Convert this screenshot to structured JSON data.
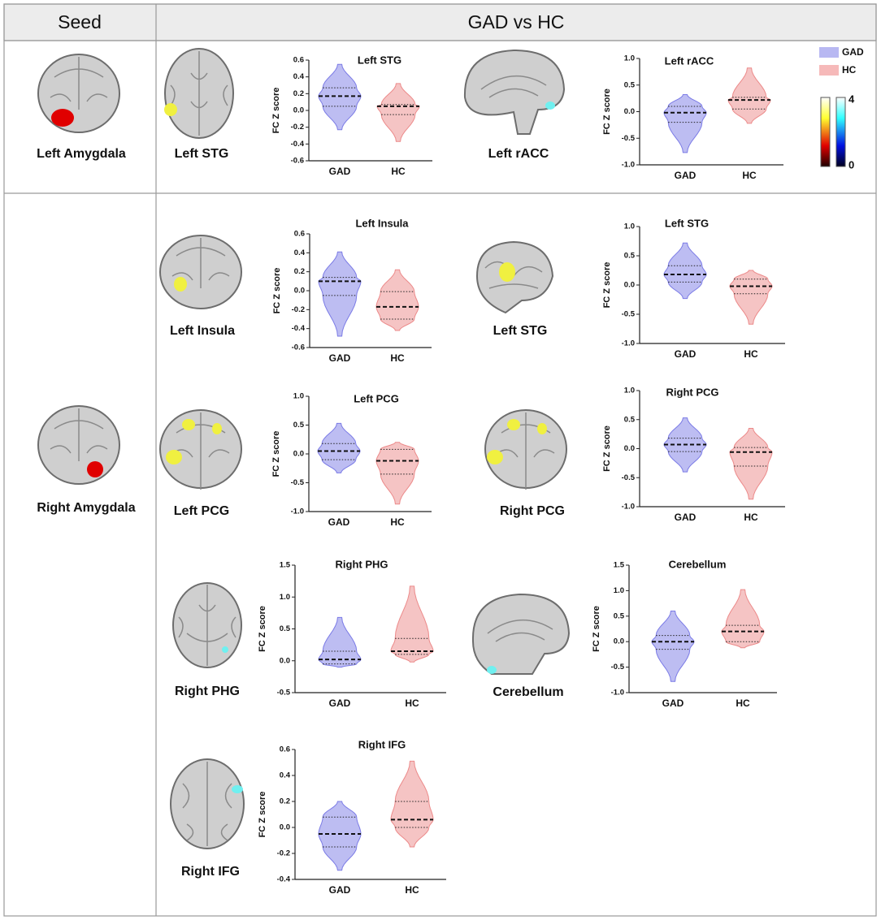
{
  "header": {
    "seed": "Seed",
    "comparison": "GAD vs HC"
  },
  "seeds": [
    "Left Amygdala",
    "Right Amygdala"
  ],
  "brain_labels": [
    "Left STG",
    "Left rACC",
    "Left Insula",
    "Left STG",
    "Left PCG",
    "Right PCG",
    "Right PHG",
    "Cerebellum",
    "Right IFG"
  ],
  "legend": [
    {
      "name": "GAD",
      "color": "#b8b8f2"
    },
    {
      "name": "HC",
      "color": "#f6b9b9"
    }
  ],
  "colorbar": {
    "max": 4,
    "min": 0
  },
  "chart_data": [
    {
      "type": "violin",
      "title": "Left STG",
      "y_label": "FC Z score",
      "categories": [
        "GAD",
        "HC"
      ],
      "colors": [
        "#7b7be6",
        "#ec8a8a"
      ],
      "min": [
        -0.23,
        -0.37
      ],
      "q1": [
        0.05,
        -0.05
      ],
      "median": [
        0.17,
        0.05
      ],
      "q3": [
        0.27,
        0.07
      ],
      "max": [
        0.55,
        0.32
      ],
      "ylim": [
        -0.6,
        0.6
      ],
      "yticks": [
        -0.6,
        -0.4,
        -0.2,
        {
          "value": 0,
          "label": "0.0"
        },
        0.2,
        0.4,
        0.6
      ]
    },
    {
      "type": "violin",
      "title": "Left rACC",
      "y_label": "FC Z score",
      "categories": [
        "GAD",
        "HC"
      ],
      "colors": [
        "#7b7be6",
        "#ec8a8a"
      ],
      "min": [
        -0.77,
        -0.22
      ],
      "q1": [
        -0.2,
        0.05
      ],
      "median": [
        -0.02,
        0.22
      ],
      "q3": [
        0.1,
        0.27
      ],
      "max": [
        0.32,
        0.82
      ],
      "ylim": [
        -1,
        1
      ],
      "yticks": [
        {
          "value": -1,
          "label": "-1.0"
        },
        -0.5,
        {
          "value": 0,
          "label": "0.0"
        },
        0.5,
        {
          "value": 1,
          "label": "1.0"
        }
      ]
    },
    {
      "type": "violin",
      "title": "Left Insula",
      "y_label": "FC Z score",
      "categories": [
        "GAD",
        "HC"
      ],
      "colors": [
        "#7b7be6",
        "#ec8a8a"
      ],
      "min": [
        -0.48,
        -0.42
      ],
      "q1": [
        -0.05,
        -0.3
      ],
      "median": [
        0.1,
        -0.17
      ],
      "q3": [
        0.14,
        -0.01
      ],
      "max": [
        0.41,
        0.22
      ],
      "ylim": [
        -0.6,
        0.6
      ],
      "yticks": [
        -0.6,
        -0.4,
        -0.2,
        {
          "value": 0,
          "label": "0.0"
        },
        0.2,
        0.4,
        0.6
      ]
    },
    {
      "type": "violin",
      "title": "Left STG",
      "y_label": "FC Z score",
      "categories": [
        "GAD",
        "HC"
      ],
      "colors": [
        "#7b7be6",
        "#ec8a8a"
      ],
      "min": [
        -0.23,
        -0.67
      ],
      "q1": [
        0.05,
        -0.15
      ],
      "median": [
        0.18,
        -0.02
      ],
      "q3": [
        0.33,
        0.1
      ],
      "max": [
        0.72,
        0.25
      ],
      "ylim": [
        -1,
        1
      ],
      "yticks": [
        {
          "value": -1,
          "label": "-1.0"
        },
        -0.5,
        {
          "value": 0,
          "label": "0.0"
        },
        0.5,
        {
          "value": 1,
          "label": "1.0"
        }
      ]
    },
    {
      "type": "violin",
      "title": "Left PCG",
      "y_label": "FC Z score",
      "categories": [
        "GAD",
        "HC"
      ],
      "colors": [
        "#7b7be6",
        "#ec8a8a"
      ],
      "min": [
        -0.33,
        -0.87
      ],
      "q1": [
        -0.1,
        -0.35
      ],
      "median": [
        0.05,
        -0.12
      ],
      "q3": [
        0.18,
        0.08
      ],
      "max": [
        0.53,
        0.2
      ],
      "ylim": [
        -1,
        1
      ],
      "yticks": [
        {
          "value": -1,
          "label": "-1.0"
        },
        -0.5,
        {
          "value": 0,
          "label": "0.0"
        },
        0.5,
        {
          "value": 1,
          "label": "1.0"
        }
      ]
    },
    {
      "type": "violin",
      "title": "Right  PCG",
      "y_label": "FC Z score",
      "categories": [
        "GAD",
        "HC"
      ],
      "colors": [
        "#7b7be6",
        "#ec8a8a"
      ],
      "min": [
        -0.4,
        -0.87
      ],
      "q1": [
        -0.05,
        -0.3
      ],
      "median": [
        0.07,
        -0.06
      ],
      "q3": [
        0.18,
        0.02
      ],
      "max": [
        0.53,
        0.35
      ],
      "ylim": [
        -1,
        1
      ],
      "yticks": [
        {
          "value": -1,
          "label": "-1.0"
        },
        -0.5,
        {
          "value": 0,
          "label": "0.0"
        },
        0.5,
        {
          "value": 1,
          "label": "1.0"
        }
      ]
    },
    {
      "type": "violin",
      "title": "Right  PHG",
      "y_label": "FC Z score",
      "categories": [
        "GAD",
        "HC"
      ],
      "colors": [
        "#7b7be6",
        "#ec8a8a"
      ],
      "min": [
        -0.1,
        -0.02
      ],
      "q1": [
        -0.05,
        0.1
      ],
      "median": [
        0.02,
        0.15
      ],
      "q3": [
        0.15,
        0.35
      ],
      "max": [
        0.68,
        1.17
      ],
      "ylim": [
        -0.5,
        1.5
      ],
      "yticks": [
        -0.5,
        {
          "value": 0,
          "label": "0.0"
        },
        0.5,
        {
          "value": 1,
          "label": "1.0"
        },
        1.5
      ]
    },
    {
      "type": "violin",
      "title": "Cerebellum",
      "y_label": "FC Z score",
      "categories": [
        "GAD",
        "HC"
      ],
      "colors": [
        "#7b7be6",
        "#ec8a8a"
      ],
      "min": [
        -0.78,
        -0.12
      ],
      "q1": [
        -0.15,
        0
      ],
      "median": [
        0,
        0.2
      ],
      "q3": [
        0.12,
        0.32
      ],
      "max": [
        0.6,
        1.02
      ],
      "ylim": [
        -1,
        1.5
      ],
      "yticks": [
        {
          "value": -1,
          "label": "-1.0"
        },
        -0.5,
        {
          "value": 0,
          "label": "0.0"
        },
        0.5,
        {
          "value": 1,
          "label": "1.0"
        },
        1.5
      ]
    },
    {
      "type": "violin",
      "title": "Right IFG",
      "y_label": "FC Z score",
      "categories": [
        "GAD",
        "HC"
      ],
      "colors": [
        "#7b7be6",
        "#ec8a8a"
      ],
      "min": [
        -0.33,
        -0.15
      ],
      "q1": [
        -0.15,
        0
      ],
      "median": [
        -0.05,
        0.06
      ],
      "q3": [
        0.08,
        0.2
      ],
      "max": [
        0.2,
        0.51
      ],
      "ylim": [
        -0.4,
        0.6
      ],
      "yticks": [
        -0.4,
        -0.2,
        {
          "value": 0,
          "label": "0.0"
        },
        0.2,
        0.4,
        0.6
      ]
    }
  ]
}
